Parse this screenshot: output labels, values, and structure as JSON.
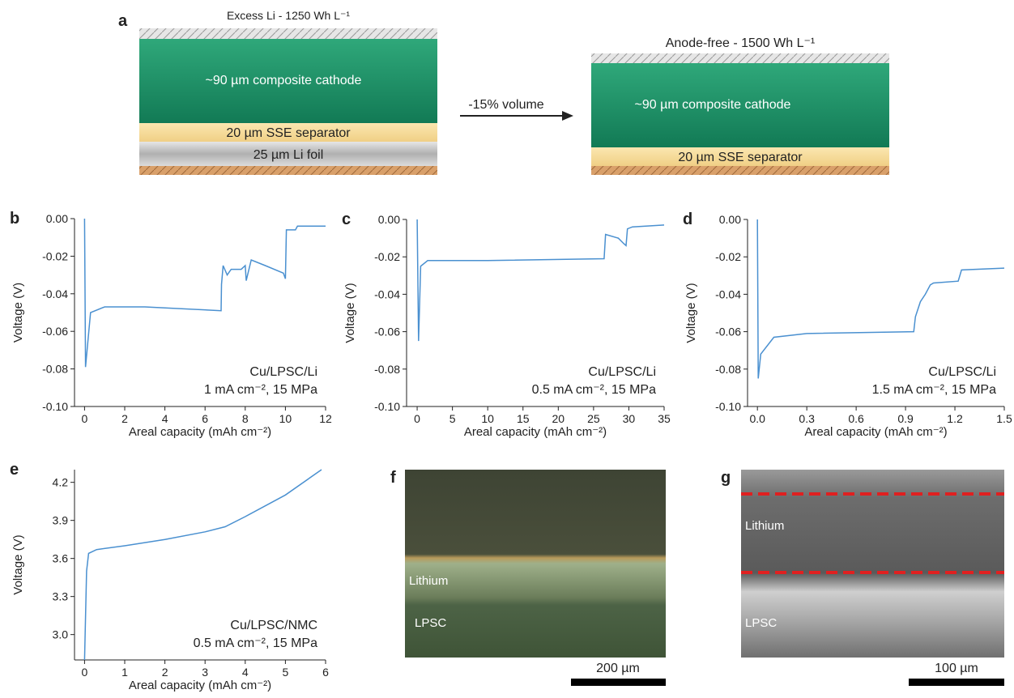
{
  "diagram": {
    "panel_label": "a",
    "left_title": "Excess Li - 1250 Wh L⁻¹",
    "left_cathode": "~90 µm composite cathode",
    "left_separator": "20 µm SSE separator",
    "left_foil": "25 µm Li foil",
    "arrow_label": "-15% volume",
    "right_title": "Anode-free - 1500 Wh L⁻¹",
    "right_cathode": "~90 µm composite cathode",
    "right_separator": "20 µm SSE separator"
  },
  "chart_data": [
    {
      "type": "line",
      "panel_label": "b",
      "xlabel": "Areal capacity (mAh cm⁻²)",
      "ylabel": "Voltage (V)",
      "color": "#4a90d0",
      "annotations": [
        "Cu/LPSC/Li",
        "1 mA cm⁻², 15 MPa"
      ],
      "x": [
        0,
        0.05,
        0.3,
        1,
        3,
        6.8,
        6.82,
        6.9,
        7.1,
        7.3,
        7.8,
        8,
        8.05,
        8.3,
        9,
        9.9,
        10,
        10.05,
        10.5,
        10.6,
        12
      ],
      "values": [
        0,
        -0.079,
        -0.05,
        -0.047,
        -0.047,
        -0.049,
        -0.035,
        -0.025,
        -0.03,
        -0.027,
        -0.027,
        -0.025,
        -0.033,
        -0.022,
        -0.025,
        -0.029,
        -0.032,
        -0.006,
        -0.006,
        -0.004,
        -0.004
      ],
      "xlim": [
        -0.5,
        12
      ],
      "xticks": [
        0,
        2,
        4,
        6,
        8,
        10,
        12
      ],
      "ylim": [
        -0.1,
        0
      ],
      "yticks": [
        {
          "value": -0.1,
          "label": "-0.10"
        },
        {
          "value": -0.08,
          "label": "-0.08"
        },
        {
          "value": -0.06,
          "label": "-0.06"
        },
        {
          "value": -0.04,
          "label": "-0.04"
        },
        {
          "value": -0.02,
          "label": "-0.02"
        },
        {
          "value": 0,
          "label": "0.00"
        }
      ]
    },
    {
      "type": "line",
      "panel_label": "c",
      "xlabel": "Areal capacity (mAh cm⁻²)",
      "ylabel": "Voltage (V)",
      "color": "#4a90d0",
      "annotations": [
        "Cu/LPSC/Li",
        "0.5 mA cm⁻², 15 MPa"
      ],
      "x": [
        0,
        0.2,
        0.5,
        1.5,
        10,
        26.5,
        26.7,
        28.5,
        29.3,
        29.6,
        29.8,
        30.5,
        35
      ],
      "values": [
        0,
        -0.065,
        -0.025,
        -0.022,
        -0.022,
        -0.021,
        -0.008,
        -0.01,
        -0.013,
        -0.014,
        -0.005,
        -0.004,
        -0.003
      ],
      "xlim": [
        -1.5,
        35
      ],
      "xticks": [
        0,
        5,
        10,
        15,
        20,
        25,
        30,
        35
      ],
      "ylim": [
        -0.1,
        0
      ],
      "yticks": [
        {
          "value": -0.1,
          "label": "-0.10"
        },
        {
          "value": -0.08,
          "label": "-0.08"
        },
        {
          "value": -0.06,
          "label": "-0.06"
        },
        {
          "value": -0.04,
          "label": "-0.04"
        },
        {
          "value": -0.02,
          "label": "-0.02"
        },
        {
          "value": 0,
          "label": "0.00"
        }
      ]
    },
    {
      "type": "line",
      "panel_label": "d",
      "xlabel": "Areal capacity (mAh cm⁻²)",
      "ylabel": "Voltage (V)",
      "color": "#4a90d0",
      "annotations": [
        "Cu/LPSC/Li",
        "1.5 mA cm⁻², 15 MPa"
      ],
      "x": [
        0,
        0.005,
        0.02,
        0.1,
        0.3,
        0.95,
        0.96,
        0.99,
        1.02,
        1.05,
        1.07,
        1.22,
        1.24,
        1.5
      ],
      "values": [
        0,
        -0.085,
        -0.072,
        -0.063,
        -0.061,
        -0.06,
        -0.052,
        -0.044,
        -0.04,
        -0.035,
        -0.034,
        -0.033,
        -0.027,
        -0.026
      ],
      "xlim": [
        -0.06,
        1.5
      ],
      "xticks": [
        {
          "value": 0,
          "label": "0.0"
        },
        {
          "value": 0.3,
          "label": "0.3"
        },
        {
          "value": 0.6,
          "label": "0.6"
        },
        {
          "value": 0.9,
          "label": "0.9"
        },
        {
          "value": 1.2,
          "label": "1.2"
        },
        {
          "value": 1.5,
          "label": "1.5"
        }
      ],
      "ylim": [
        -0.1,
        0
      ],
      "yticks": [
        {
          "value": -0.1,
          "label": "-0.10"
        },
        {
          "value": -0.08,
          "label": "-0.08"
        },
        {
          "value": -0.06,
          "label": "-0.06"
        },
        {
          "value": -0.04,
          "label": "-0.04"
        },
        {
          "value": -0.02,
          "label": "-0.02"
        },
        {
          "value": 0,
          "label": "0.00"
        }
      ]
    },
    {
      "type": "line",
      "panel_label": "e",
      "xlabel": "Areal capacity (mAh cm⁻²)",
      "ylabel": "Voltage (V)",
      "color": "#4a90d0",
      "annotations": [
        "Cu/LPSC/NMC",
        "0.5 mA cm⁻², 15 MPa"
      ],
      "x": [
        0,
        0.05,
        0.1,
        0.3,
        1,
        2,
        3,
        3.5,
        4,
        5,
        5.9
      ],
      "values": [
        2.8,
        3.5,
        3.64,
        3.67,
        3.7,
        3.75,
        3.81,
        3.85,
        3.93,
        4.1,
        4.3
      ],
      "xlim": [
        -0.25,
        6
      ],
      "xticks": [
        0,
        1,
        2,
        3,
        4,
        5,
        6
      ],
      "ylim": [
        2.8,
        4.3
      ],
      "yticks": [
        {
          "value": 3,
          "label": "3.0"
        },
        {
          "value": 3.3,
          "label": "3.3"
        },
        {
          "value": 3.6,
          "label": "3.6"
        },
        {
          "value": 3.9,
          "label": "3.9"
        },
        {
          "value": 4.2,
          "label": "4.2"
        }
      ]
    }
  ],
  "micrographs": [
    {
      "panel_label": "f",
      "top_label": "Lithium",
      "bottom_label": "LPSC",
      "scale_bar": "200 µm"
    },
    {
      "panel_label": "g",
      "top_label": "Lithium",
      "bottom_label": "LPSC",
      "scale_bar": "100 µm"
    }
  ]
}
